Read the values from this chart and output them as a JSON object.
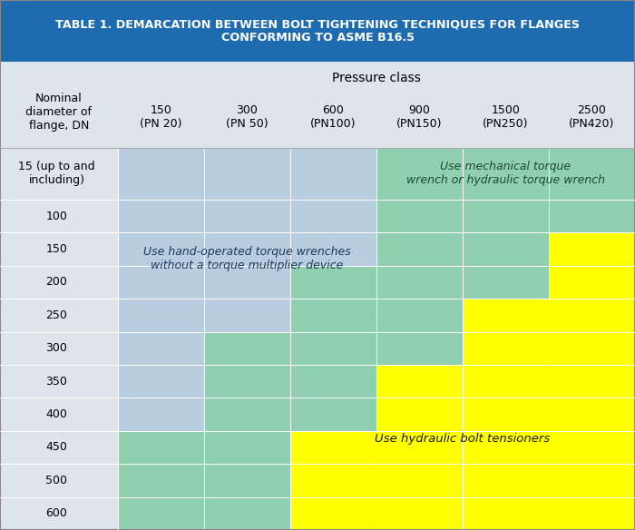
{
  "title_line1": "TABLE 1. DEMARCATION BETWEEN BOLT TIGHTENING TECHNIQUES FOR FLANGES",
  "title_line2": "CONFORMING TO ASME B16.5",
  "title_bg": "#1f6bb0",
  "title_color": "#ffffff",
  "header_bg": "#dde4ea",
  "col_header": "Pressure class",
  "row_header": "Nominal\ndiameter of\nflange, DN",
  "columns": [
    "150\n(PN 20)",
    "300\n(PN 50)",
    "600\n(PN100)",
    "900\n(PN150)",
    "1500\n(PN250)",
    "2500\n(PN420)"
  ],
  "rows": [
    "15 (up to and\nincluding)",
    "100",
    "150",
    "200",
    "250",
    "300",
    "350",
    "400",
    "450",
    "500",
    "600"
  ],
  "color_blue": "#b8cde0",
  "color_green": "#90cfb0",
  "color_yellow": "#ffff00",
  "color_bg": "#dde4ea",
  "label_hand": "Use hand-operated torque wrenches\nwithout a torque multiplier device",
  "label_mech": "Use mechanical torque\nwrench or hydraulic torque wrench",
  "label_hyd": "Use hydraulic bolt tensioners",
  "cell_colors": [
    [
      "blue",
      "blue",
      "blue",
      "green",
      "green",
      "green"
    ],
    [
      "blue",
      "blue",
      "blue",
      "green",
      "green",
      "green"
    ],
    [
      "blue",
      "blue",
      "blue",
      "green",
      "green",
      "yellow"
    ],
    [
      "blue",
      "blue",
      "green",
      "green",
      "green",
      "yellow"
    ],
    [
      "blue",
      "blue",
      "green",
      "green",
      "yellow",
      "yellow"
    ],
    [
      "blue",
      "green",
      "green",
      "green",
      "yellow",
      "yellow"
    ],
    [
      "blue",
      "green",
      "green",
      "yellow",
      "yellow",
      "yellow"
    ],
    [
      "blue",
      "green",
      "green",
      "yellow",
      "yellow",
      "yellow"
    ],
    [
      "green",
      "green",
      "yellow",
      "yellow",
      "yellow",
      "yellow"
    ],
    [
      "green",
      "green",
      "yellow",
      "yellow",
      "yellow",
      "yellow"
    ],
    [
      "green",
      "green",
      "yellow",
      "yellow",
      "yellow",
      "yellow"
    ]
  ],
  "note": "rows top-to-bottom: DN15,100,150,200,250,300,350,400,450,500,600; cols: 150,300,600,900,1500,2500"
}
